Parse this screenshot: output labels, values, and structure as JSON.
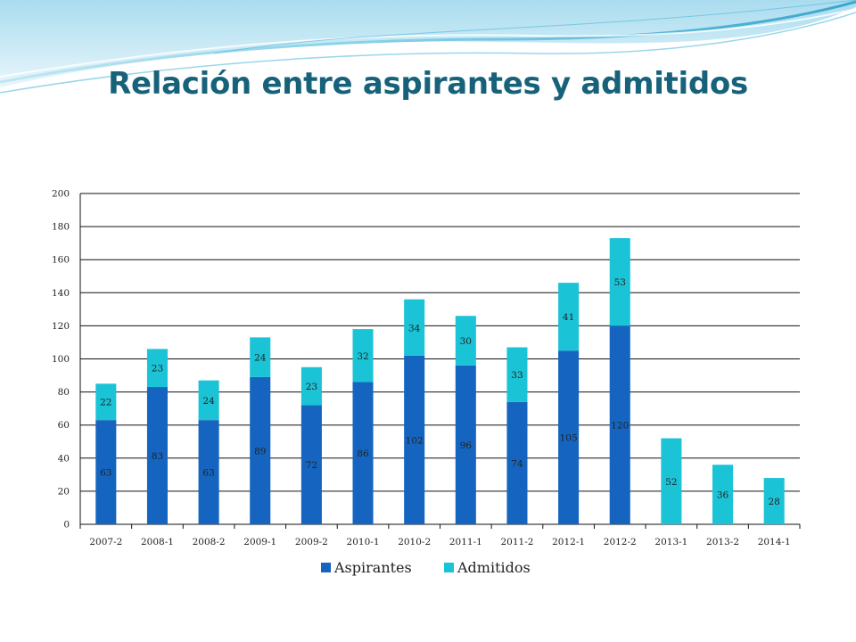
{
  "slide": {
    "title": "Relación entre aspirantes y admitidos"
  },
  "chart_data": {
    "type": "bar",
    "stacked": true,
    "categories": [
      "2007-2",
      "2008-1",
      "2008-2",
      "2009-1",
      "2009-2",
      "2010-1",
      "2010-2",
      "2011-1",
      "2011-2",
      "2012-1",
      "2012-2",
      "2013-1",
      "2013-2",
      "2014-1"
    ],
    "series": [
      {
        "name": "Aspirantes",
        "color": "#1565c0",
        "values": [
          63,
          83,
          63,
          89,
          72,
          86,
          102,
          96,
          74,
          105,
          120,
          0,
          0,
          0
        ],
        "labels": [
          "63",
          "83",
          "63",
          "89",
          "72",
          "86",
          "102",
          "96",
          "74",
          "105",
          "120",
          "",
          "",
          ""
        ]
      },
      {
        "name": "Admitidos",
        "color": "#1bc3d6",
        "values": [
          22,
          23,
          24,
          24,
          23,
          32,
          34,
          30,
          33,
          41,
          53,
          52,
          36,
          28
        ],
        "labels": [
          "22",
          "23",
          "24",
          "24",
          "23",
          "32",
          "34",
          "30",
          "33",
          "41",
          "53",
          "52",
          "36",
          "28"
        ]
      }
    ],
    "ylim": [
      0,
      200
    ],
    "yticks": [
      0,
      20,
      40,
      60,
      80,
      100,
      120,
      140,
      160,
      180,
      200
    ],
    "ytick_labels": [
      "0",
      "20",
      "40",
      "60",
      "80",
      "100",
      "120",
      "140",
      "160",
      "180",
      "200"
    ],
    "grid": true,
    "legend_position": "bottom",
    "xlabel": "",
    "ylabel": ""
  }
}
